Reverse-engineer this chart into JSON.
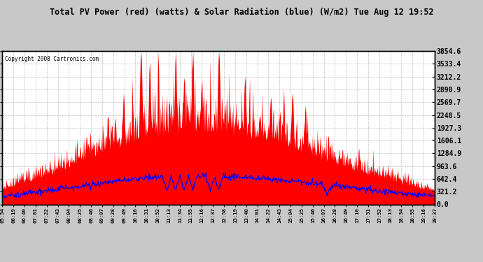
{
  "title": "Total PV Power (red) (watts) & Solar Radiation (blue) (W/m2) Tue Aug 12 19:52",
  "copyright": "Copyright 2008 Cartronics.com",
  "ylabel_right_ticks": [
    0.0,
    321.2,
    642.4,
    963.6,
    1284.9,
    1606.1,
    1927.3,
    2248.5,
    2569.7,
    2890.9,
    3212.2,
    3533.4,
    3854.6
  ],
  "x_tick_labels": [
    "05:54",
    "06:19",
    "06:40",
    "07:01",
    "07:22",
    "07:43",
    "08:04",
    "08:25",
    "08:46",
    "09:07",
    "09:28",
    "09:49",
    "10:10",
    "10:31",
    "10:52",
    "11:13",
    "11:34",
    "11:55",
    "12:16",
    "12:37",
    "12:58",
    "13:19",
    "13:40",
    "14:01",
    "14:22",
    "14:43",
    "15:04",
    "15:25",
    "15:46",
    "16:07",
    "16:28",
    "16:49",
    "17:10",
    "17:31",
    "17:52",
    "18:13",
    "18:34",
    "18:55",
    "19:16",
    "19:37"
  ],
  "plot_bg_color": "#ffffff",
  "grid_color": "#c0c0c0",
  "red_color": "#ff0000",
  "blue_color": "#0000ff",
  "title_bg": "#ffffff",
  "outer_bg": "#c8c8c8",
  "ymax": 3854.6,
  "ymin": 0.0
}
